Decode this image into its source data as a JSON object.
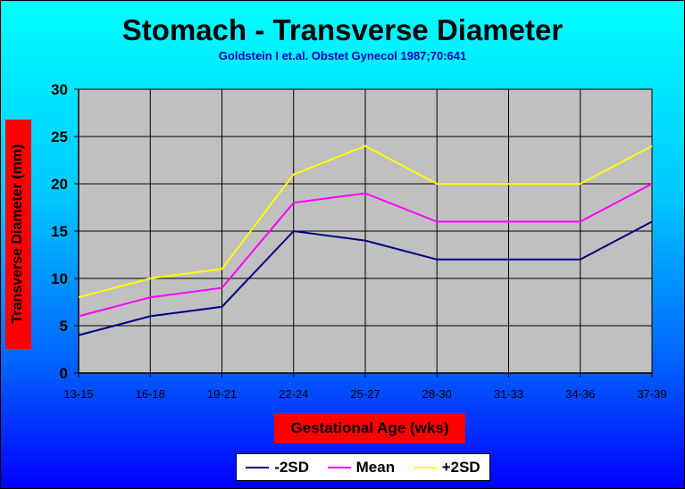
{
  "chart_data": {
    "type": "line",
    "title": "Stomach - Transverse Diameter",
    "subtitle": "Goldstein I et.al. Obstet Gynecol 1987;70:641",
    "xlabel": "Gestational Age (wks)",
    "ylabel": "Transverse Diameter (mm)",
    "categories": [
      "13-15",
      "16-18",
      "19-21",
      "22-24",
      "25-27",
      "28-30",
      "31-33",
      "34-36",
      "37-39"
    ],
    "ylim": [
      0,
      30
    ],
    "yticks": [
      0,
      5,
      10,
      15,
      20,
      25,
      30
    ],
    "grid": true,
    "legend_position": "bottom",
    "series": [
      {
        "name": "-2SD",
        "color": "#000080",
        "values": [
          4,
          6,
          7,
          15,
          14,
          12,
          12,
          12,
          16
        ]
      },
      {
        "name": "Mean",
        "color": "#ff00ff",
        "values": [
          6,
          8,
          9,
          18,
          19,
          16,
          16,
          16,
          20
        ]
      },
      {
        "name": "+2SD",
        "color": "#ffff00",
        "values": [
          8,
          10,
          11,
          21,
          24,
          20,
          20,
          20,
          24
        ]
      }
    ],
    "colors": {
      "plot_background": "#c0c0c0",
      "label_box": "#ff0000"
    }
  }
}
